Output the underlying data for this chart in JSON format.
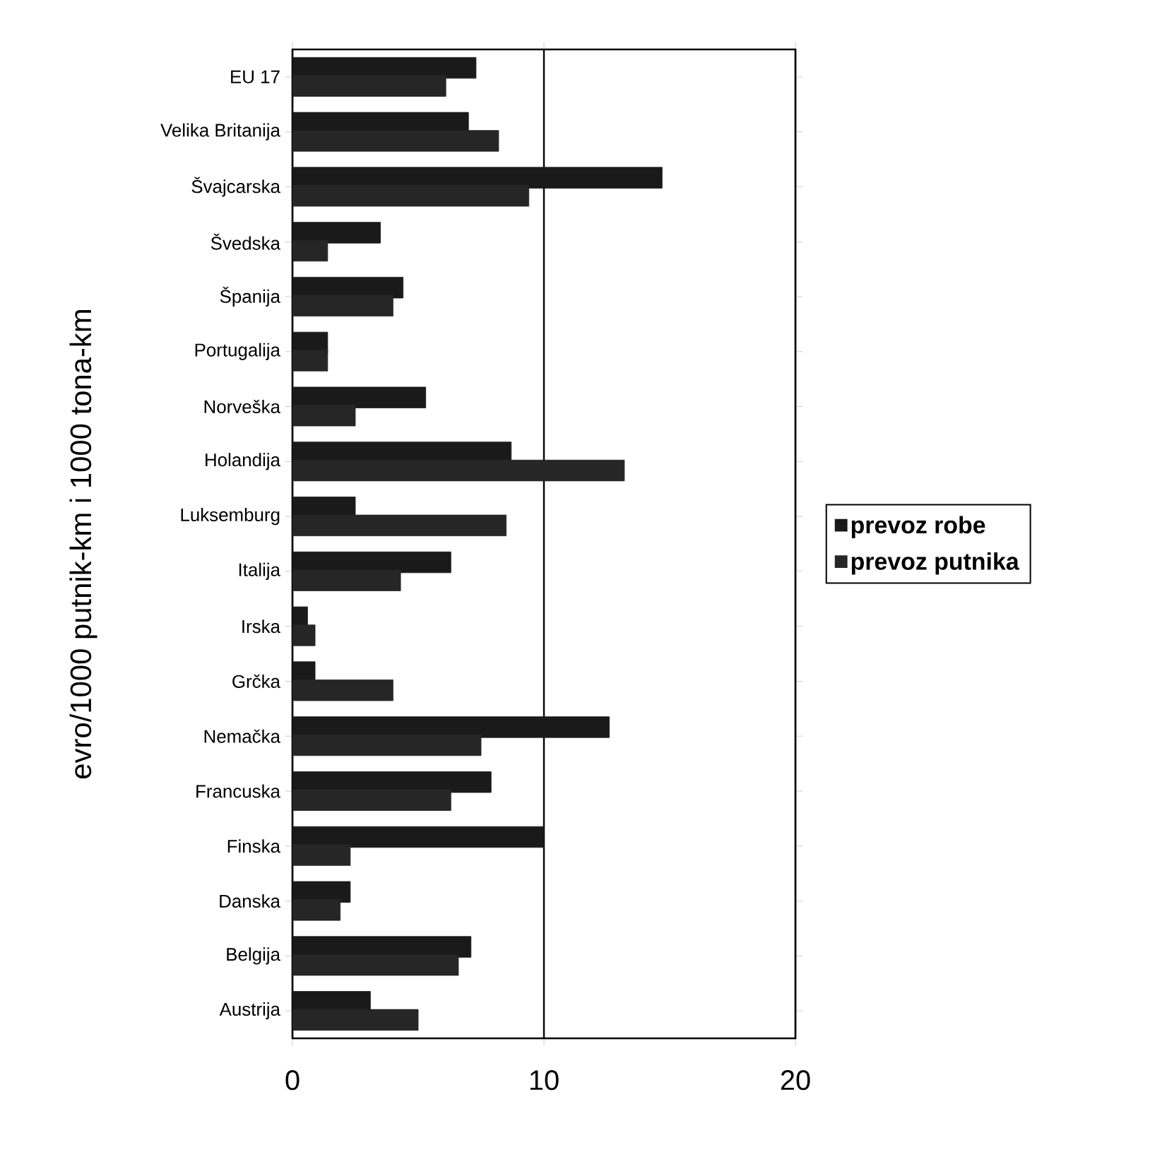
{
  "chart_data": {
    "type": "bar",
    "orientation": "horizontal",
    "ylabel": "evro/1000 putnik-km i 1000 tona-km",
    "categories": [
      "EU 17",
      "Velika Britanija",
      "Švajcarska",
      "Švedska",
      "Španija",
      "Portugalija",
      "Norveška",
      "Holandija",
      "Luksemburg",
      "Italija",
      "Irska",
      "Grčka",
      "Nemačka",
      "Francuska",
      "Finska",
      "Danska",
      "Belgija",
      "Austrija"
    ],
    "series": [
      {
        "name": "prevoz robe",
        "color": "#1a1a1a",
        "values": [
          7.3,
          7.0,
          14.7,
          3.5,
          4.4,
          1.4,
          5.3,
          8.7,
          2.5,
          6.3,
          0.6,
          0.9,
          12.6,
          7.9,
          10.0,
          2.3,
          7.1,
          3.1
        ]
      },
      {
        "name": "prevoz putnika",
        "color": "#262626",
        "values": [
          6.1,
          8.2,
          9.4,
          1.4,
          4.0,
          1.4,
          2.5,
          13.2,
          8.5,
          4.3,
          0.9,
          4.0,
          7.5,
          6.3,
          2.3,
          1.9,
          6.6,
          5.0
        ]
      }
    ],
    "xlim": [
      0,
      20
    ],
    "xticks": [
      0,
      10,
      20
    ],
    "grid": "x",
    "legend": "right"
  }
}
